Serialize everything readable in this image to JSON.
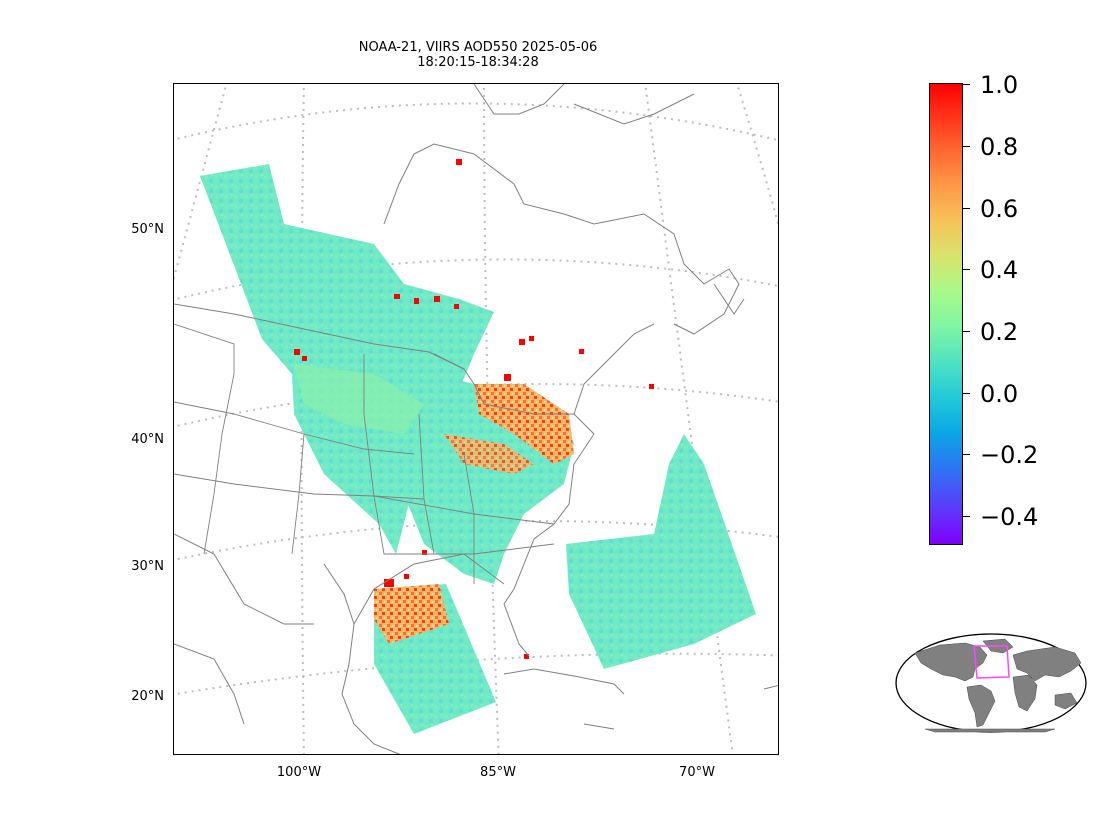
{
  "title": {
    "line1": "NOAA-21, VIIRS AOD550 2025-05-06",
    "line2": "18:20:15-18:34:28"
  },
  "map": {
    "lat_labels": [
      "50°N",
      "40°N",
      "30°N",
      "20°N"
    ],
    "lon_labels": [
      "100°W",
      "85°W",
      "70°W"
    ]
  },
  "colorbar": {
    "ticks": [
      "1.0",
      "0.8",
      "0.6",
      "0.4",
      "0.2",
      "0.0",
      "−0.2",
      "−0.4"
    ],
    "range": [
      -0.5,
      1.0
    ],
    "colormap": "rainbow"
  },
  "inset": {
    "land_color": "#808080",
    "highlight_color": "#ff44ff"
  }
}
